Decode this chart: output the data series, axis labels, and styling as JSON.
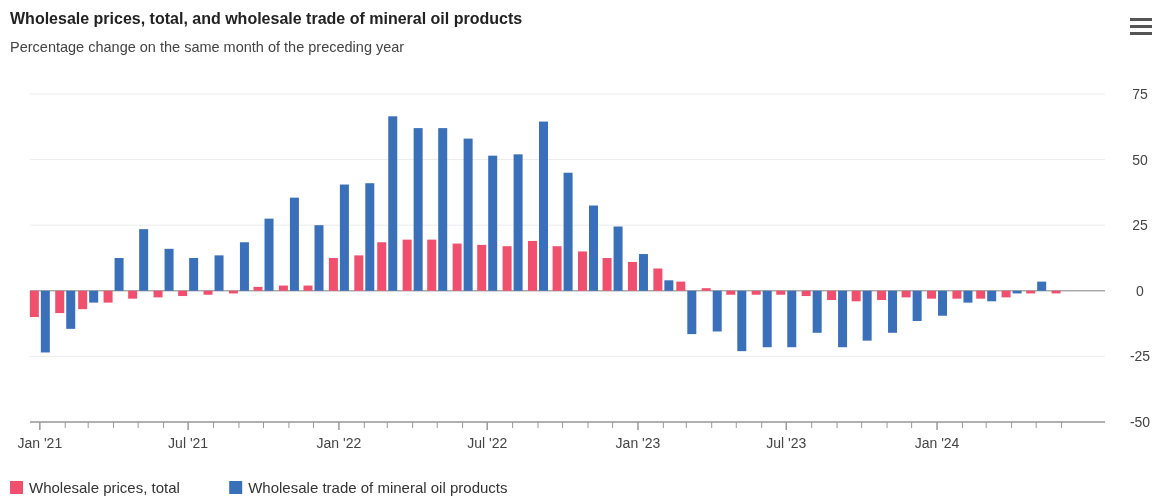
{
  "chart_data": {
    "type": "bar",
    "title": "Wholesale prices, total, and wholesale trade of mineral oil products",
    "subtitle": "Percentage change on the same month of the preceding year",
    "x": [
      "2021-01",
      "2021-02",
      "2021-03",
      "2021-04",
      "2021-05",
      "2021-06",
      "2021-07",
      "2021-08",
      "2021-09",
      "2021-10",
      "2021-11",
      "2021-12",
      "2022-01",
      "2022-02",
      "2022-03",
      "2022-04",
      "2022-05",
      "2022-06",
      "2022-07",
      "2022-08",
      "2022-09",
      "2022-10",
      "2022-11",
      "2022-12",
      "2023-01",
      "2023-02",
      "2023-03",
      "2023-04",
      "2023-05",
      "2023-06",
      "2023-07",
      "2023-08",
      "2023-09",
      "2023-10",
      "2023-11",
      "2023-12",
      "2024-01",
      "2024-02",
      "2024-03",
      "2024-04",
      "2024-05",
      "2024-06"
    ],
    "series": [
      {
        "name": "Wholesale prices, total",
        "color": "#f0506e",
        "values": [
          -10,
          -8.5,
          -7,
          -4.5,
          -3,
          -2.5,
          -2,
          -1.5,
          -1,
          1.5,
          2,
          2,
          12.5,
          13.5,
          18.5,
          19.5,
          19.5,
          18,
          17.5,
          17,
          19,
          17,
          15,
          12.5,
          11,
          8.5,
          3.5,
          1,
          -1.5,
          -1.5,
          -1.5,
          -2,
          -3.5,
          -4,
          -3.5,
          -2.5,
          -3,
          -3,
          -3,
          -2.5,
          -1,
          -1
        ]
      },
      {
        "name": "Wholesale trade of mineral oil products",
        "color": "#3a6fba",
        "values": [
          -23.5,
          -14.5,
          -4.5,
          12.5,
          23.5,
          16,
          12.5,
          13.5,
          18.5,
          27.5,
          35.5,
          25,
          40.5,
          41,
          66.5,
          62,
          62,
          58,
          51.5,
          52,
          64.5,
          45,
          32.5,
          24.5,
          14,
          4,
          -16.5,
          -15.5,
          -23,
          -21.5,
          -21.5,
          -16,
          -21.5,
          -19,
          -16,
          -11.5,
          -9.5,
          -4.5,
          -4,
          -1,
          3.5,
          null
        ]
      }
    ],
    "xlim": [
      "2020-12-20",
      "2024-07-24"
    ],
    "xticks": [
      {
        "value": "2021-01",
        "label": "Jan '21"
      },
      {
        "value": "2021-02",
        "label": null
      },
      {
        "value": "2021-03",
        "label": null
      },
      {
        "value": "2021-04",
        "label": null
      },
      {
        "value": "2021-05",
        "label": null
      },
      {
        "value": "2021-06",
        "label": null
      },
      {
        "value": "2021-07",
        "label": "Jul '21"
      },
      {
        "value": "2021-08",
        "label": null
      },
      {
        "value": "2021-09",
        "label": null
      },
      {
        "value": "2021-10",
        "label": null
      },
      {
        "value": "2021-11",
        "label": null
      },
      {
        "value": "2021-12",
        "label": null
      },
      {
        "value": "2022-01",
        "label": "Jan '22"
      },
      {
        "value": "2022-02",
        "label": null
      },
      {
        "value": "2022-03",
        "label": null
      },
      {
        "value": "2022-04",
        "label": null
      },
      {
        "value": "2022-05",
        "label": null
      },
      {
        "value": "2022-06",
        "label": null
      },
      {
        "value": "2022-07",
        "label": "Jul '22"
      },
      {
        "value": "2022-08",
        "label": null
      },
      {
        "value": "2022-09",
        "label": null
      },
      {
        "value": "2022-10",
        "label": null
      },
      {
        "value": "2022-11",
        "label": null
      },
      {
        "value": "2022-12",
        "label": null
      },
      {
        "value": "2023-01",
        "label": "Jan '23"
      },
      {
        "value": "2023-02",
        "label": null
      },
      {
        "value": "2023-03",
        "label": null
      },
      {
        "value": "2023-04",
        "label": null
      },
      {
        "value": "2023-05",
        "label": null
      },
      {
        "value": "2023-06",
        "label": null
      },
      {
        "value": "2023-07",
        "label": "Jul '23"
      },
      {
        "value": "2023-08",
        "label": null
      },
      {
        "value": "2023-09",
        "label": null
      },
      {
        "value": "2023-10",
        "label": null
      },
      {
        "value": "2023-11",
        "label": null
      },
      {
        "value": "2023-12",
        "label": null
      },
      {
        "value": "2024-01",
        "label": "Jan '24"
      },
      {
        "value": "2024-02",
        "label": null
      },
      {
        "value": "2024-03",
        "label": null
      },
      {
        "value": "2024-04",
        "label": null
      },
      {
        "value": "2024-05",
        "label": null
      },
      {
        "value": "2024-06",
        "label": null
      }
    ],
    "ylim": [
      -50,
      75
    ],
    "yticks": [
      -50,
      -25,
      0,
      25,
      50,
      75
    ],
    "grid": "y",
    "legend": "bottom left",
    "ref_lines": [
      {
        "axis": "y",
        "value": 0,
        "color": "#8a8a8a"
      }
    ]
  }
}
